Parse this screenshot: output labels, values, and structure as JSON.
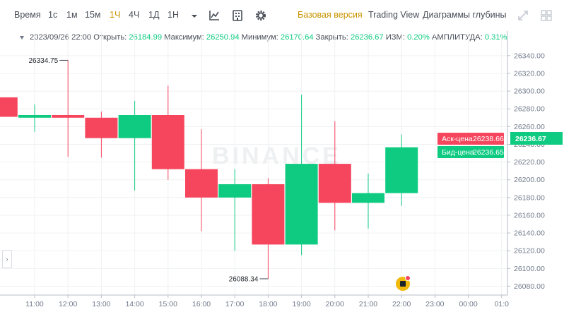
{
  "toolbar": {
    "time_label": "Время",
    "intervals": [
      "1с",
      "1м",
      "15м",
      "1Ч",
      "4Ч",
      "1Д",
      "1Н"
    ],
    "active_interval": "1Ч",
    "views": [
      "Базовая версия",
      "Trading View",
      "Диаграммы глубины"
    ],
    "active_view": "Базовая версия",
    "icons": [
      "chevron-down-icon",
      "indicator-icon",
      "template-icon",
      "settings-icon",
      "expand-icon",
      "layout-icon"
    ]
  },
  "ohlc": {
    "date": "2023/09/26 22:00",
    "open_label": "Открыть:",
    "open": "26184.99",
    "high_label": "Максимум:",
    "high": "26250.94",
    "low_label": "Минимум:",
    "low": "26170.64",
    "close_label": "Закрыть:",
    "close": "26236.67",
    "change_label": "ИЗМ:",
    "change": "0.20%",
    "amplitude_label": "АМПЛИТУДА:",
    "amplitude": "0.31%"
  },
  "markers": {
    "ask_label": "Аск-цена",
    "ask_price": "26238.66",
    "bid_label": "Бид-цена",
    "bid_price": "26236.65",
    "last_price": "26236.67"
  },
  "watermark": "BINANCE",
  "chart_data": {
    "type": "candlestick",
    "x": [
      "10:00",
      "11:00",
      "12:00",
      "13:00",
      "14:00",
      "15:00",
      "16:00",
      "17:00",
      "18:00",
      "19:00",
      "20:00",
      "21:00",
      "22:00"
    ],
    "candles": [
      {
        "time": "10:00",
        "open": 26293,
        "high": 26293,
        "low": 26271,
        "close": 26271
      },
      {
        "time": "11:00",
        "open": 26270,
        "high": 26285,
        "low": 26254,
        "close": 26273
      },
      {
        "time": "12:00",
        "open": 26273,
        "high": 26334.75,
        "low": 26226,
        "close": 26270
      },
      {
        "time": "13:00",
        "open": 26270,
        "high": 26277,
        "low": 26225,
        "close": 26247
      },
      {
        "time": "14:00",
        "open": 26247,
        "high": 26289,
        "low": 26188,
        "close": 26273
      },
      {
        "time": "15:00",
        "open": 26273,
        "high": 26306,
        "low": 26200,
        "close": 26212
      },
      {
        "time": "16:00",
        "open": 26212,
        "high": 26257,
        "low": 26142,
        "close": 26180
      },
      {
        "time": "17:00",
        "open": 26180,
        "high": 26212,
        "low": 26120,
        "close": 26195
      },
      {
        "time": "18:00",
        "open": 26195,
        "high": 26202,
        "low": 26088.34,
        "close": 26127
      },
      {
        "time": "19:00",
        "open": 26127,
        "high": 26296,
        "low": 26115,
        "close": 26218
      },
      {
        "time": "20:00",
        "open": 26218,
        "high": 26266,
        "low": 26143,
        "close": 26174
      },
      {
        "time": "21:00",
        "open": 26174,
        "high": 26207,
        "low": 26145,
        "close": 26184.99
      },
      {
        "time": "22:00",
        "open": 26184.99,
        "high": 26250.94,
        "low": 26170.64,
        "close": 26236.67
      }
    ],
    "x_ticks": [
      "11:00",
      "12:00",
      "13:00",
      "14:00",
      "15:00",
      "16:00",
      "17:00",
      "18:00",
      "19:00",
      "20:00",
      "21:00",
      "22:00",
      "23:00",
      "00:00",
      "01:0"
    ],
    "y_ticks": [
      "26080.00",
      "26100.00",
      "26120.00",
      "26140.00",
      "26160.00",
      "26180.00",
      "26200.00",
      "26220.00",
      "26240.00",
      "26260.00",
      "26280.00",
      "26300.00",
      "26320.00",
      "26340.00"
    ],
    "ylim": [
      26070,
      26355
    ],
    "annotations": [
      {
        "label": "26334.75",
        "time": "12:00",
        "value": 26334.75
      },
      {
        "label": "26088.34",
        "time": "18:00",
        "value": 26088.34
      }
    ],
    "colors": {
      "up": "#0ecb81",
      "down": "#f6465d",
      "axis": "#707a8a",
      "grid": "#f0f1f2"
    }
  }
}
